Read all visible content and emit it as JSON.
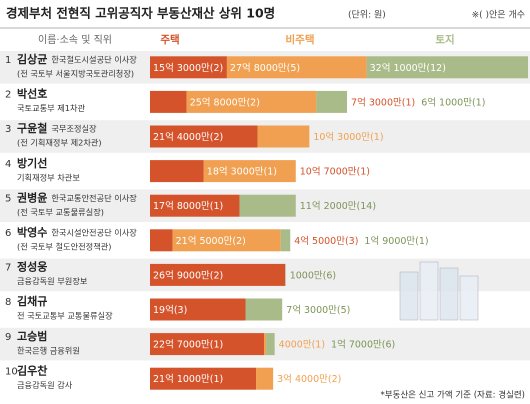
{
  "chart_data": {
    "type": "bar",
    "orientation": "horizontal",
    "stacked": true,
    "title": "경제부처 전현직 고위공직자 부동산재산 상위 10명",
    "unit": "(단위: 원)",
    "note": "※( )안은 개수",
    "header": "이름·소속 및 직위",
    "source": "*부동산은 신고 가액 기준 (자료: 경실련)",
    "ranks": [
      1,
      2,
      3,
      4,
      5,
      6,
      7,
      8,
      9,
      10
    ],
    "categories": [
      "김상균",
      "박선호",
      "구윤철",
      "방기선",
      "권병윤",
      "박영수",
      "정성웅",
      "김채규",
      "고승범",
      "김우찬"
    ],
    "positions": [
      [
        "한국철도시설공단 이사장",
        "(전 국토부 서울지방국토관리청장)"
      ],
      [
        null,
        "국토교통부 제1차관"
      ],
      [
        "국무조정실장",
        "(전 기획재정부 제2차관)"
      ],
      [
        null,
        "기획재정부 차관보"
      ],
      [
        "한국교통안전공단 이사장",
        "(전 국토부 교통물류실장)"
      ],
      [
        "한국시설안전공단 이사장",
        "(전 국토부 철도안전정책관)"
      ],
      [
        null,
        "금융감독원 부원장보"
      ],
      [
        null,
        "전 국토교통부 교통물류실장"
      ],
      [
        null,
        "한국은행 금융위원"
      ],
      [
        null,
        "금융감독원 감사"
      ]
    ],
    "xlim": [
      0,
      7520000000
    ],
    "series": [
      {
        "name": "주택",
        "color": "#d4532b",
        "values": [
          1530000000,
          730000000,
          2140000000,
          1070000000,
          1780000000,
          450000000,
          2690000000,
          1900000000,
          2270000000,
          2110000000
        ],
        "value_labels": [
          "15억 3000만(2)",
          "7억 3000만(1)",
          "21억 4000만(2)",
          "10억 7000만(1)",
          "17억 8000만(1)",
          "4억 5000만(3)",
          "26억 9000만(2)",
          "19억(3)",
          "22억 7000만(1)",
          "21억 1000만(1)"
        ]
      },
      {
        "name": "비주택",
        "color": "#f0a050",
        "values": [
          2780000000,
          2580000000,
          1030000000,
          1830000000,
          null,
          2150000000,
          null,
          null,
          40000000,
          340000000
        ],
        "value_labels": [
          "27억 8000만(5)",
          "25억 8000만(2)",
          "10억 3000만(1)",
          "18억 3000만(1)",
          null,
          "21억 5000만(2)",
          null,
          null,
          "4000만(1)",
          "3억 4000만(2)"
        ]
      },
      {
        "name": "토지",
        "color": "#a9bb88",
        "values": [
          3210000000,
          610000000,
          null,
          null,
          1120000000,
          190000000,
          10000000,
          730000000,
          170000000,
          null
        ],
        "value_labels": [
          "32억 1000만(12)",
          "6억 1000만(1)",
          null,
          null,
          "11억 2000만(14)",
          "1억 9000만(1)",
          "1000만(6)",
          "7억 3000만(5)",
          "1억 7000만(6)",
          null
        ]
      }
    ]
  }
}
